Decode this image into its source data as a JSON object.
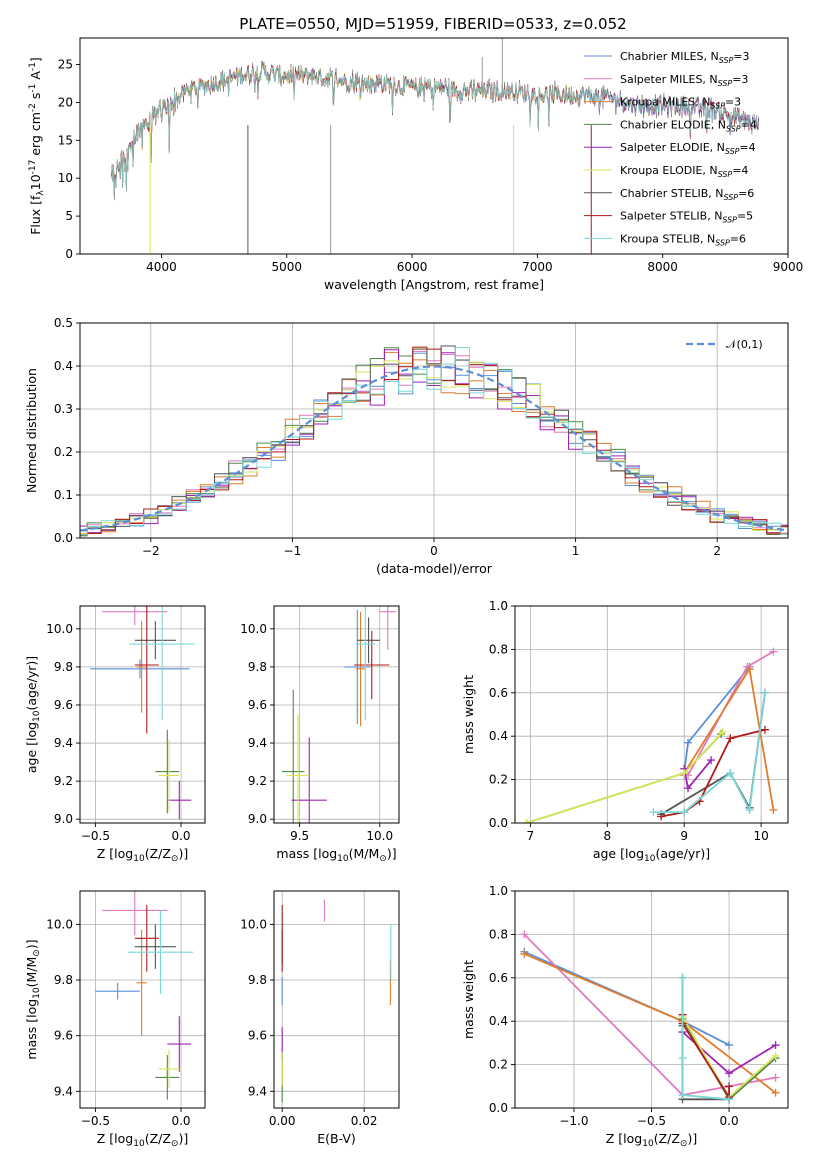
{
  "title": "PLATE=0550, MJD=51959, FIBERID=0533, z=0.052",
  "colors": {
    "axes": "#000000",
    "grid": "#b0b0b0",
    "normal_curve": "#5b8fd6"
  },
  "models": [
    {
      "name": "Chabrier MILES, N$_{SSP}$=3",
      "color": "#5b8fd6"
    },
    {
      "name": "Salpeter MILES, N$_{SSP}$=3",
      "color": "#e07bbf"
    },
    {
      "name": "Kroupa MILES, N$_{SSP}$=3",
      "color": "#e07c2c"
    },
    {
      "name": "Chabrier ELODIE, N$_{SSP}$=4",
      "color": "#4f8a46"
    },
    {
      "name": "Salpeter ELODIE, N$_{SSP}$=4",
      "color": "#a020b8"
    },
    {
      "name": "Kroupa ELODIE, N$_{SSP}$=4",
      "color": "#d8e65a"
    },
    {
      "name": "Chabrier STELIB, N$_{SSP}$=6",
      "color": "#555555"
    },
    {
      "name": "Salpeter STELIB, N$_{SSP}$=5",
      "color": "#b01a1a"
    },
    {
      "name": "Kroupa STELIB, N$_{SSP}$=6",
      "color": "#7ad7d7"
    }
  ],
  "chart_data": [
    {
      "type": "line",
      "id": "spectrum",
      "title": "PLATE=0550, MJD=51959, FIBERID=0533, z=0.052",
      "xlabel": "wavelength [Angstrom, rest frame]",
      "ylabel": "Flux [f$_\\lambda$10$^{-17}$ erg cm$^{-2}$ s$^{-1}$ A$^{-1}$]",
      "xlim": [
        3350,
        9000
      ],
      "ylim": [
        0,
        28.5
      ],
      "xticks": [
        4000,
        5000,
        6000,
        7000,
        8000,
        9000
      ],
      "yticks": [
        0,
        5,
        10,
        15,
        20,
        25
      ],
      "grid": false,
      "legend": "right",
      "continuum": [
        [
          3600,
          10
        ],
        [
          3700,
          13
        ],
        [
          3800,
          16
        ],
        [
          3900,
          18
        ],
        [
          4000,
          19
        ],
        [
          4200,
          21.5
        ],
        [
          4400,
          22.5
        ],
        [
          4600,
          23.5
        ],
        [
          4800,
          24
        ],
        [
          5000,
          23.5
        ],
        [
          5200,
          23.5
        ],
        [
          5400,
          23
        ],
        [
          5600,
          22.5
        ],
        [
          5800,
          22.5
        ],
        [
          6000,
          22
        ],
        [
          6200,
          22
        ],
        [
          6400,
          21.5
        ],
        [
          6600,
          21.5
        ],
        [
          6800,
          21.5
        ],
        [
          7000,
          21
        ],
        [
          7200,
          21
        ],
        [
          7400,
          21
        ],
        [
          7600,
          20.5
        ],
        [
          7800,
          19.5
        ],
        [
          8000,
          19.5
        ],
        [
          8200,
          19.5
        ],
        [
          8400,
          19
        ],
        [
          8600,
          18
        ],
        [
          8770,
          17
        ]
      ]
    },
    {
      "type": "histogram",
      "id": "residuals",
      "xlabel": "(data-model)/error",
      "ylabel": "Normed distribution",
      "xlim": [
        -2.5,
        2.5
      ],
      "ylim": [
        0,
        0.5
      ],
      "xticks": [
        -2,
        -1,
        0,
        1,
        2
      ],
      "yticks": [
        0.0,
        0.1,
        0.2,
        0.3,
        0.4,
        0.5
      ],
      "grid": true,
      "legend_label": "$\\mathcal{N}(0,1)$",
      "bin_width": 0.1
    },
    {
      "type": "errorbar",
      "id": "age-vs-Z",
      "xlabel": "Z [log$_{10}$(Z/Z$_\\odot$)]",
      "ylabel": "age  [log$_{10}$(age/yr)]",
      "xlim": [
        -0.59,
        0.14
      ],
      "ylim": [
        8.98,
        10.12
      ],
      "xticks": [
        -0.5,
        0.0
      ],
      "yticks": [
        9.0,
        9.2,
        9.4,
        9.6,
        9.8,
        10.0
      ],
      "grid": true,
      "points": [
        {
          "x": -0.24,
          "xerr": 0.29,
          "y": 9.79,
          "yerr": 0.05
        },
        {
          "x": -0.27,
          "xerr": 0.19,
          "y": 10.09,
          "yerr": 0.07
        },
        {
          "x": -0.23,
          "xerr": 0.03,
          "y": 9.8,
          "yerr": 0.24
        },
        {
          "x": -0.08,
          "xerr": 0.07,
          "y": 9.25,
          "yerr": 0.22
        },
        {
          "x": -0.01,
          "xerr": 0.07,
          "y": 9.1,
          "yerr": 0.1
        },
        {
          "x": -0.07,
          "xerr": 0.06,
          "y": 9.23,
          "yerr": 0.19
        },
        {
          "x": -0.15,
          "xerr": 0.12,
          "y": 9.94,
          "yerr": 0.1
        },
        {
          "x": -0.2,
          "xerr": 0.07,
          "y": 9.81,
          "yerr": 0.36
        },
        {
          "x": -0.11,
          "xerr": 0.19,
          "y": 9.92,
          "yerr": 0.4
        }
      ]
    },
    {
      "type": "errorbar",
      "id": "age-vs-mass",
      "xlabel": "mass [log$_{10}$(M/M$_\\odot$)]",
      "ylabel": "",
      "xlim": [
        9.34,
        10.12
      ],
      "ylim": [
        8.98,
        10.12
      ],
      "xticks": [
        9.5,
        10.0
      ],
      "yticks": [
        9.0,
        9.2,
        9.4,
        9.6,
        9.8,
        10.0
      ],
      "grid": true,
      "points": [
        {
          "x": 9.86,
          "xerr": 0.08,
          "y": 9.8,
          "yerr": 0.3
        },
        {
          "x": 10.05,
          "xerr": 0.05,
          "y": 10.09,
          "yerr": 0.2
        },
        {
          "x": 9.88,
          "xerr": 0.03,
          "y": 9.79,
          "yerr": 0.3
        },
        {
          "x": 9.46,
          "xerr": 0.07,
          "y": 9.25,
          "yerr": 0.43
        },
        {
          "x": 9.56,
          "xerr": 0.11,
          "y": 9.1,
          "yerr": 0.33
        },
        {
          "x": 9.49,
          "xerr": 0.07,
          "y": 9.23,
          "yerr": 0.32
        },
        {
          "x": 9.93,
          "xerr": 0.07,
          "y": 9.94,
          "yerr": 0.12
        },
        {
          "x": 9.95,
          "xerr": 0.11,
          "y": 9.81,
          "yerr": 0.18
        },
        {
          "x": 9.91,
          "xerr": 0.06,
          "y": 9.92,
          "yerr": 0.4
        }
      ]
    },
    {
      "type": "line",
      "id": "massweight-vs-age",
      "xlabel": "age  [log$_{10}$(age/yr)]",
      "ylabel": "mass weight",
      "xlim": [
        6.8,
        10.35
      ],
      "ylim": [
        0,
        1.0
      ],
      "xticks": [
        7,
        8,
        9,
        10
      ],
      "yticks": [
        0.0,
        0.2,
        0.4,
        0.6,
        0.8,
        1.0
      ],
      "grid": true,
      "series": [
        {
          "x": [
            9.0,
            9.05,
            9.85
          ],
          "y": [
            0.23,
            0.37,
            0.72
          ]
        },
        {
          "x": [
            9.0,
            9.05,
            9.82,
            10.16
          ],
          "y": [
            0.22,
            0.22,
            0.72,
            0.79
          ]
        },
        {
          "x": [
            9.0,
            9.85,
            10.16
          ],
          "y": [
            0.23,
            0.71,
            0.06
          ]
        },
        {
          "x": [
            6.95,
            9.0,
            9.48
          ],
          "y": [
            0.0,
            0.23,
            0.41
          ]
        },
        {
          "x": [
            9.0,
            9.05,
            9.35
          ],
          "y": [
            0.25,
            0.16,
            0.29
          ]
        },
        {
          "x": [
            6.95,
            9.0,
            9.5
          ],
          "y": [
            0.0,
            0.23,
            0.42
          ]
        },
        {
          "x": [
            8.7,
            9.6,
            9.85,
            10.05
          ],
          "y": [
            0.04,
            0.23,
            0.07,
            0.6
          ]
        },
        {
          "x": [
            8.7,
            9.0,
            9.2,
            9.6,
            10.05
          ],
          "y": [
            0.03,
            0.05,
            0.1,
            0.39,
            0.43
          ]
        },
        {
          "x": [
            8.6,
            9.0,
            9.6,
            9.85,
            10.05
          ],
          "y": [
            0.05,
            0.05,
            0.23,
            0.06,
            0.6
          ]
        }
      ]
    },
    {
      "type": "errorbar",
      "id": "mass-vs-Z",
      "xlabel": "Z [log$_{10}$(Z/Z$_\\odot$)]",
      "ylabel": "mass [log$_{10}$(M/M$_\\odot$)]",
      "xlim": [
        -0.59,
        0.14
      ],
      "ylim": [
        9.34,
        10.12
      ],
      "xticks": [
        -0.5,
        0.0
      ],
      "yticks": [
        9.4,
        9.6,
        9.8,
        10.0
      ],
      "grid": true,
      "points": [
        {
          "x": -0.37,
          "xerr": 0.13,
          "y": 9.76,
          "yerr": 0.03
        },
        {
          "x": -0.27,
          "xerr": 0.19,
          "y": 10.05,
          "yerr": 0.09
        },
        {
          "x": -0.23,
          "xerr": 0.03,
          "y": 9.79,
          "yerr": 0.19
        },
        {
          "x": -0.08,
          "xerr": 0.07,
          "y": 9.45,
          "yerr": 0.08
        },
        {
          "x": -0.01,
          "xerr": 0.07,
          "y": 9.57,
          "yerr": 0.1
        },
        {
          "x": -0.07,
          "xerr": 0.06,
          "y": 9.48,
          "yerr": 0.07
        },
        {
          "x": -0.15,
          "xerr": 0.12,
          "y": 9.92,
          "yerr": 0.08
        },
        {
          "x": -0.2,
          "xerr": 0.07,
          "y": 9.95,
          "yerr": 0.12
        },
        {
          "x": -0.12,
          "xerr": 0.19,
          "y": 9.9,
          "yerr": 0.15
        }
      ]
    },
    {
      "type": "errorbar",
      "id": "mass-vs-EBV",
      "xlabel": "E(B-V)",
      "ylabel": "",
      "xlim": [
        -0.002,
        0.0285
      ],
      "ylim": [
        9.34,
        10.12
      ],
      "xticks": [
        0.0,
        0.02
      ],
      "yticks": [
        9.4,
        9.6,
        9.8,
        10.0
      ],
      "grid": true,
      "points": [
        {
          "x": 0.0,
          "xerr": 0,
          "y": 9.76,
          "yerr": 0.05
        },
        {
          "x": 0.0103,
          "xerr": 0,
          "y": 10.05,
          "yerr": 0.04
        },
        {
          "x": 0.0264,
          "xerr": 0,
          "y": 9.79,
          "yerr": 0.08
        },
        {
          "x": 0.0,
          "xerr": 0,
          "y": 9.45,
          "yerr": 0.09
        },
        {
          "x": 0.0,
          "xerr": 0,
          "y": 9.57,
          "yerr": 0.06
        },
        {
          "x": 0.0,
          "xerr": 0,
          "y": 9.48,
          "yerr": 0.06
        },
        {
          "x": 0.0,
          "xerr": 0,
          "y": 9.92,
          "yerr": 0.06
        },
        {
          "x": 0.0,
          "xerr": 0,
          "y": 9.95,
          "yerr": 0.12
        },
        {
          "x": 0.0265,
          "xerr": 0,
          "y": 9.9,
          "yerr": 0.1
        }
      ]
    },
    {
      "type": "line",
      "id": "massweight-vs-Z",
      "xlabel": "Z [log$_{10}$(Z/Z$_\\odot$)]",
      "ylabel": "mass weight",
      "xlim": [
        -1.38,
        0.38
      ],
      "ylim": [
        0,
        1.0
      ],
      "xticks": [
        -1.0,
        -0.5,
        0.0
      ],
      "yticks": [
        0.0,
        0.2,
        0.4,
        0.6,
        0.8,
        1.0
      ],
      "grid": true,
      "series": [
        {
          "x": [
            -1.32,
            -0.3,
            0.0
          ],
          "y": [
            0.72,
            0.4,
            0.29
          ]
        },
        {
          "x": [
            -1.32,
            -0.3,
            0.3
          ],
          "y": [
            0.8,
            0.06,
            0.14
          ]
        },
        {
          "x": [
            -1.32,
            -0.3,
            0.3
          ],
          "y": [
            0.71,
            0.4,
            0.07
          ]
        },
        {
          "x": [
            -0.3,
            0.0,
            0.3
          ],
          "y": [
            0.41,
            0.04,
            0.23
          ]
        },
        {
          "x": [
            -0.3,
            0.0,
            0.3
          ],
          "y": [
            0.35,
            0.16,
            0.29
          ]
        },
        {
          "x": [
            -0.3,
            0.0,
            0.3
          ],
          "y": [
            0.42,
            0.05,
            0.24
          ]
        },
        {
          "x": [
            -0.3,
            -0.3,
            -0.3,
            0.0
          ],
          "y": [
            0.6,
            0.38,
            0.04,
            0.04
          ]
        },
        {
          "x": [
            -0.3,
            -0.3,
            0.0,
            0.0
          ],
          "y": [
            0.43,
            0.39,
            0.05,
            0.1
          ]
        },
        {
          "x": [
            -0.3,
            -0.3,
            -0.3,
            0.0
          ],
          "y": [
            0.6,
            0.23,
            0.06,
            0.04
          ]
        }
      ]
    }
  ]
}
